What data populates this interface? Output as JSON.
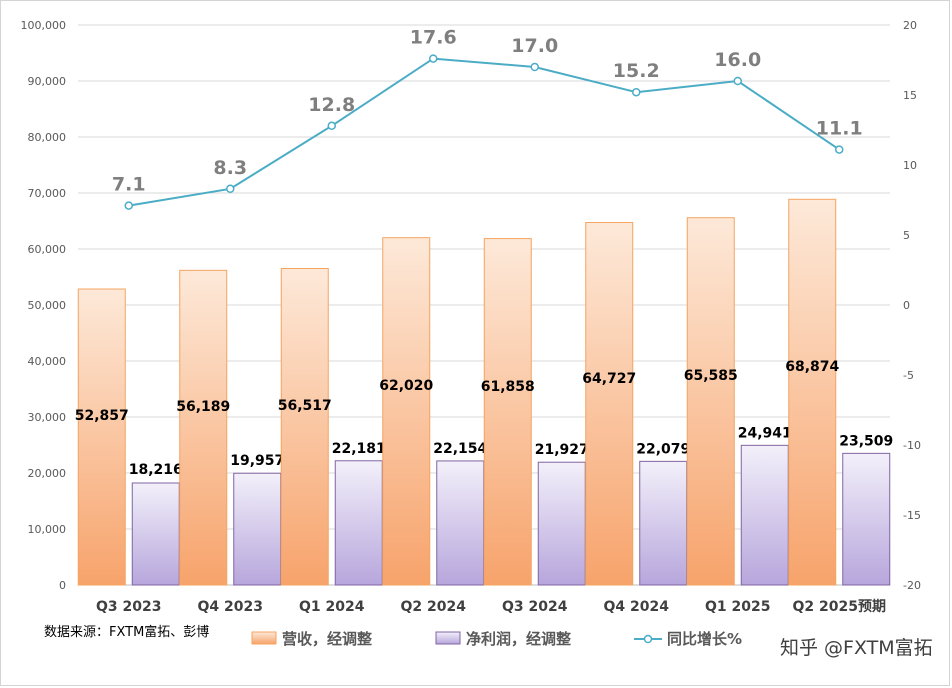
{
  "chart_data": {
    "type": "bar",
    "categories": [
      "Q3 2023",
      "Q4 2023",
      "Q1 2024",
      "Q2 2024",
      "Q3 2024",
      "Q4 2024",
      "Q1 2025",
      "Q2 2025预期"
    ],
    "series": [
      {
        "name": "营收，经调整",
        "type": "bar",
        "axis": "left",
        "values": [
          52857,
          56189,
          56517,
          62020,
          61858,
          64727,
          65585,
          68874
        ],
        "labels": [
          "52,857",
          "56,189",
          "56,517",
          "62,020",
          "61,858",
          "64,727",
          "65,585",
          "68,874"
        ],
        "color": "#f4b183"
      },
      {
        "name": "净利润，经调整",
        "type": "bar",
        "axis": "left",
        "values": [
          18216,
          19957,
          22181,
          22154,
          21927,
          22079,
          24941,
          23509
        ],
        "labels": [
          "18,216",
          "19,957",
          "22,181",
          "22,154",
          "21,927",
          "22,079",
          "24,941",
          "23,509"
        ],
        "color": "#b4a7d6"
      },
      {
        "name": "同比增长%",
        "type": "line",
        "axis": "right",
        "values": [
          7.1,
          8.3,
          12.8,
          17.6,
          17.0,
          15.2,
          16.0,
          11.1
        ],
        "labels": [
          "7.1",
          "8.3",
          "12.8",
          "17.6",
          "17.0",
          "15.2",
          "16.0",
          "11.1"
        ],
        "color": "#4bacc6"
      }
    ],
    "yleft": {
      "range": [
        0,
        100000
      ],
      "ticks": [
        "0",
        "10,000",
        "20,000",
        "30,000",
        "40,000",
        "50,000",
        "60,000",
        "70,000",
        "80,000",
        "90,000",
        "100,000"
      ]
    },
    "yright": {
      "range": [
        -20,
        20
      ],
      "ticks": [
        "-20",
        "-15",
        "-10",
        "-5",
        "0",
        "5",
        "10",
        "15",
        "20"
      ]
    },
    "grid": true,
    "legend": "bottom"
  },
  "source_note": "数据来源：FXTM富拓、彭博",
  "watermark": "知乎 @FXTM富拓"
}
